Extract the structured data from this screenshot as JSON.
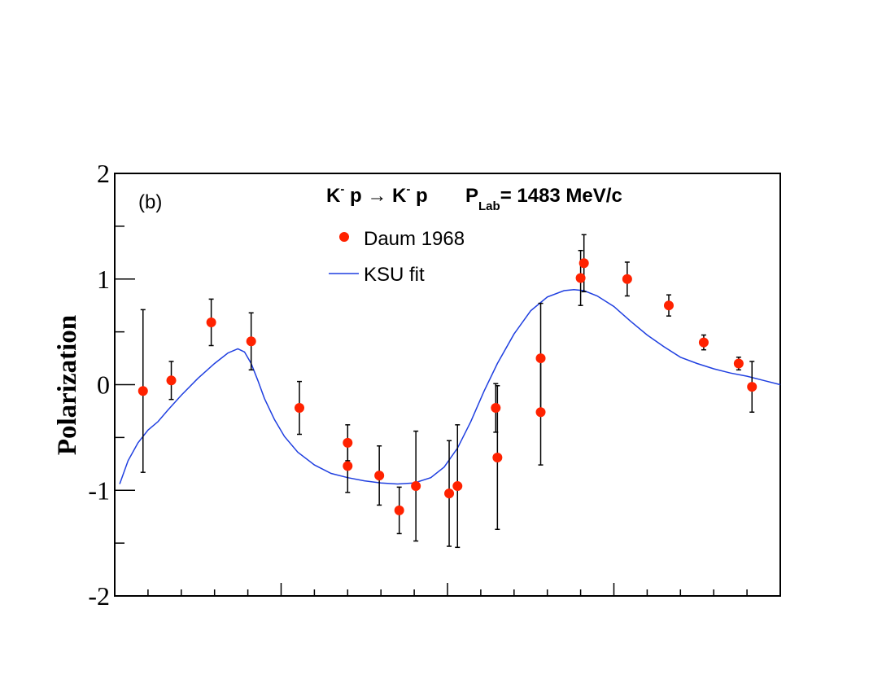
{
  "chart_data": {
    "type": "scatter",
    "ylabel": "Polarization",
    "xlabel": "",
    "panel_label": "(b)",
    "title": {
      "reaction_lhs_particle": "K",
      "reaction_lhs_charge": "-",
      "reaction_lhs_target": " p ",
      "arrow": "→",
      "reaction_rhs_particle": " K",
      "reaction_rhs_charge": "-",
      "reaction_rhs_target": " p",
      "momentum_symbol": "P",
      "momentum_subscript": "Lab",
      "momentum_value": "= 1483 MeV/c"
    },
    "xlim": [
      -1,
      1
    ],
    "ylim": [
      -2,
      2
    ],
    "y_ticks": [
      {
        "value": 2,
        "label": "2"
      },
      {
        "value": 1,
        "label": "1"
      },
      {
        "value": 0,
        "label": "0"
      },
      {
        "value": -1,
        "label": "-1"
      },
      {
        "value": -2,
        "label": "-2"
      }
    ],
    "x_major_ticks": [
      -0.5,
      0,
      0.5
    ],
    "x_minor_ticks": [
      -0.9,
      -0.8,
      -0.7,
      -0.6,
      -0.4,
      -0.3,
      -0.2,
      -0.1,
      0.1,
      0.2,
      0.3,
      0.4,
      0.6,
      0.7,
      0.8,
      0.9
    ],
    "y_minor_ticks": [
      1.5,
      0.5,
      -0.5,
      -1.5
    ],
    "legend": [
      {
        "name": "Daum 1968",
        "marker": "circle",
        "color": "#ff2200"
      },
      {
        "name": "KSU fit",
        "marker": "line",
        "color": "#1f3fe0"
      }
    ],
    "series": [
      {
        "name": "Daum 1968",
        "type": "scatter",
        "color": "#ff2200",
        "points": [
          {
            "x": -0.915,
            "y": -0.06,
            "err": 0.77
          },
          {
            "x": -0.83,
            "y": 0.04,
            "err": 0.18
          },
          {
            "x": -0.71,
            "y": 0.59,
            "err": 0.22
          },
          {
            "x": -0.59,
            "y": 0.41,
            "err": 0.27
          },
          {
            "x": -0.445,
            "y": -0.22,
            "err": 0.25
          },
          {
            "x": -0.3,
            "y": -0.55,
            "err": 0.17
          },
          {
            "x": -0.3,
            "y": -0.77,
            "err": 0.25
          },
          {
            "x": -0.205,
            "y": -0.86,
            "err": 0.28
          },
          {
            "x": -0.145,
            "y": -1.19,
            "err": 0.22
          },
          {
            "x": -0.095,
            "y": -0.96,
            "err": 0.52
          },
          {
            "x": 0.005,
            "y": -1.03,
            "err": 0.5
          },
          {
            "x": 0.03,
            "y": -0.96,
            "err": 0.58
          },
          {
            "x": 0.145,
            "y": -0.22,
            "err": 0.23
          },
          {
            "x": 0.15,
            "y": -0.69,
            "err": 0.68
          },
          {
            "x": 0.28,
            "y": 0.25,
            "err": 0.52
          },
          {
            "x": 0.28,
            "y": -0.26,
            "err": 0.5
          },
          {
            "x": 0.4,
            "y": 1.01,
            "err": 0.26
          },
          {
            "x": 0.41,
            "y": 1.15,
            "err": 0.27
          },
          {
            "x": 0.54,
            "y": 1.0,
            "err": 0.16
          },
          {
            "x": 0.665,
            "y": 0.75,
            "err": 0.1
          },
          {
            "x": 0.77,
            "y": 0.4,
            "err": 0.07
          },
          {
            "x": 0.875,
            "y": 0.2,
            "err": 0.06
          },
          {
            "x": 0.915,
            "y": -0.02,
            "err": 0.24
          }
        ]
      },
      {
        "name": "KSU fit",
        "type": "line",
        "color": "#1f3fe0",
        "x": [
          -0.985,
          -0.96,
          -0.93,
          -0.9,
          -0.87,
          -0.84,
          -0.8,
          -0.75,
          -0.7,
          -0.66,
          -0.63,
          -0.61,
          -0.59,
          -0.57,
          -0.55,
          -0.52,
          -0.49,
          -0.45,
          -0.4,
          -0.35,
          -0.3,
          -0.25,
          -0.2,
          -0.15,
          -0.1,
          -0.05,
          -0.01,
          0.03,
          0.07,
          0.11,
          0.15,
          0.2,
          0.25,
          0.3,
          0.35,
          0.38,
          0.41,
          0.45,
          0.5,
          0.55,
          0.6,
          0.65,
          0.7,
          0.75,
          0.8,
          0.85,
          0.9,
          0.95,
          1.0
        ],
        "y": [
          -0.94,
          -0.72,
          -0.55,
          -0.43,
          -0.35,
          -0.24,
          -0.1,
          0.06,
          0.2,
          0.3,
          0.34,
          0.31,
          0.2,
          0.04,
          -0.13,
          -0.33,
          -0.49,
          -0.64,
          -0.76,
          -0.84,
          -0.88,
          -0.91,
          -0.93,
          -0.94,
          -0.93,
          -0.88,
          -0.78,
          -0.6,
          -0.35,
          -0.06,
          0.2,
          0.48,
          0.7,
          0.83,
          0.89,
          0.9,
          0.89,
          0.84,
          0.74,
          0.6,
          0.47,
          0.36,
          0.26,
          0.2,
          0.15,
          0.11,
          0.08,
          0.04,
          0.0
        ]
      }
    ]
  }
}
